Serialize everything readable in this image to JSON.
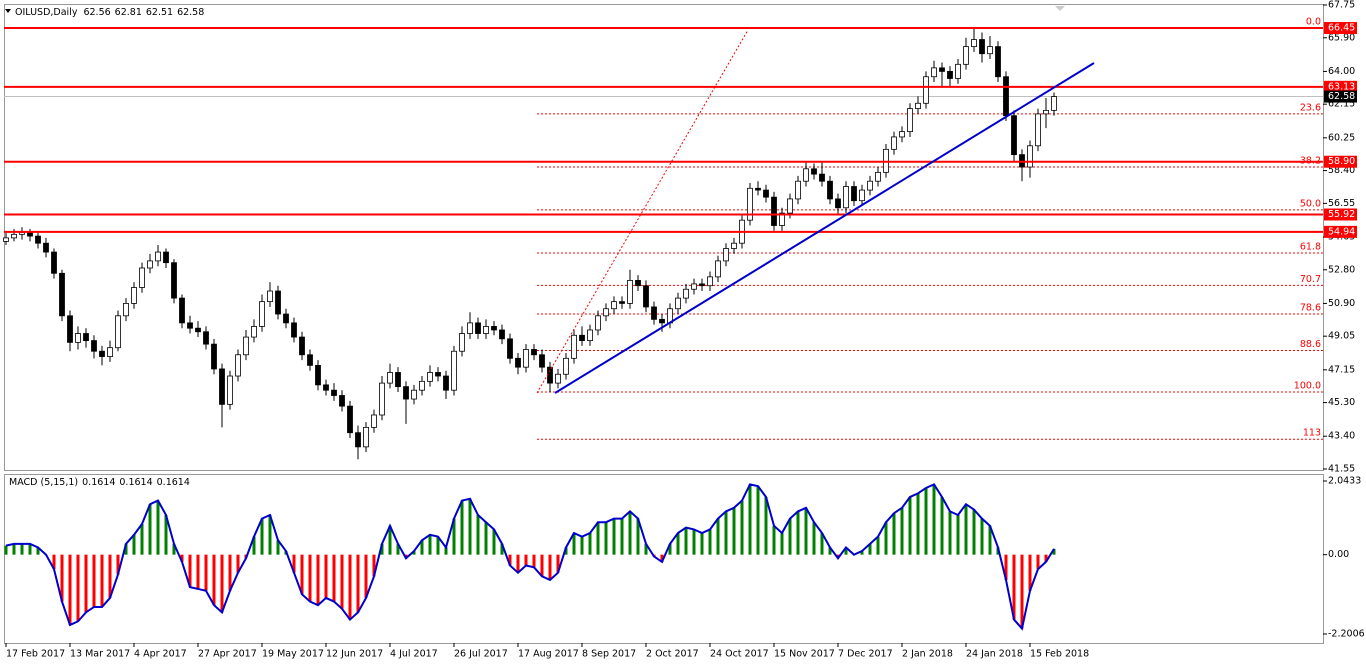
{
  "chart_data": [
    {
      "type": "candlestick",
      "title": "OILUSD,Daily",
      "header_values": [
        62.56,
        62.81,
        62.51,
        62.58
      ],
      "xlim": [
        -0.25,
        164.625
      ],
      "ylim": [
        41.55,
        67.75
      ],
      "yticks": [
        67.75,
        {
          "value": 65.9,
          "label": "65.90"
        },
        {
          "value": 64,
          "label": "64.00"
        },
        62.15,
        60.25,
        {
          "value": 58.4,
          "label": "58.40"
        },
        56.55,
        54.65,
        {
          "value": 52.8,
          "label": "52.80"
        },
        {
          "value": 50.9,
          "label": "50.90"
        },
        49.05,
        47.15,
        {
          "value": 45.3,
          "label": "45.30"
        },
        {
          "value": 43.4,
          "label": "43.40"
        },
        41.55
      ],
      "xticks": [
        {
          "value": 0,
          "label": "17 Feb 2017"
        },
        {
          "value": 8,
          "label": "13 Mar 2017"
        },
        {
          "value": 16,
          "label": "4 Apr 2017"
        },
        {
          "value": 24,
          "label": "27 Apr 2017"
        },
        {
          "value": 32,
          "label": "19 May 2017"
        },
        {
          "value": 40,
          "label": "12 Jun 2017"
        },
        {
          "value": 48,
          "label": "4 Jul 2017"
        },
        {
          "value": 56,
          "label": "26 Jul 2017"
        },
        {
          "value": 64,
          "label": "17 Aug 2017"
        },
        {
          "value": 72,
          "label": "8 Sep 2017"
        },
        {
          "value": 80,
          "label": "2 Oct 2017"
        },
        {
          "value": 88,
          "label": "24 Oct 2017"
        },
        {
          "value": 96,
          "label": "15 Nov 2017"
        },
        {
          "value": 104,
          "label": "7 Dec 2017"
        },
        {
          "value": 112,
          "label": "2 Jan 2018"
        },
        {
          "value": 120,
          "label": "24 Jan 2018"
        },
        {
          "value": 128,
          "label": "15 Feb 2018"
        }
      ],
      "levels": [
        66.45,
        63.13,
        {
          "value": 58.9,
          "label": "58.90"
        },
        55.92,
        54.94
      ],
      "level_color": "#ff0000",
      "current_price": 62.58,
      "fib_levels": [
        {
          "label": "0.0",
          "price": 66.45
        },
        {
          "label": "23.6",
          "price": 61.6
        },
        {
          "label": "38.2",
          "price": 58.6
        },
        {
          "label": "50.0",
          "price": 56.18
        },
        {
          "label": "61.8",
          "price": 53.75
        },
        {
          "label": "70.7",
          "price": 51.92
        },
        {
          "label": "78.6",
          "price": 50.3
        },
        {
          "label": "88.6",
          "price": 48.24
        },
        {
          "label": "100.0",
          "price": 45.9
        },
        {
          "label": "113",
          "price": 43.23
        }
      ],
      "fib_color": "#ff0000",
      "up_color": "#ffffff",
      "down_color": "#000000",
      "ohlc": [
        [
          54.4,
          54.9,
          54.2,
          54.6
        ],
        [
          54.6,
          55.1,
          54.4,
          54.8
        ],
        [
          54.8,
          55.2,
          54.5,
          54.9
        ],
        [
          54.9,
          55.1,
          54.4,
          54.7
        ],
        [
          54.7,
          54.9,
          54.0,
          54.3
        ],
        [
          54.3,
          54.6,
          53.5,
          53.8
        ],
        [
          53.8,
          54.0,
          52.3,
          52.6
        ],
        [
          52.6,
          52.8,
          49.9,
          50.2
        ],
        [
          50.2,
          50.5,
          48.2,
          48.7
        ],
        [
          48.7,
          49.6,
          48.3,
          49.2
        ],
        [
          49.2,
          49.5,
          48.4,
          48.8
        ],
        [
          48.8,
          49.1,
          47.8,
          48.2
        ],
        [
          48.2,
          48.5,
          47.4,
          47.9
        ],
        [
          47.9,
          48.8,
          47.6,
          48.4
        ],
        [
          48.4,
          50.5,
          48.2,
          50.2
        ],
        [
          50.2,
          51.2,
          49.9,
          50.9
        ],
        [
          50.9,
          52.1,
          50.6,
          51.8
        ],
        [
          51.8,
          53.2,
          51.5,
          52.9
        ],
        [
          52.9,
          53.7,
          52.6,
          53.3
        ],
        [
          53.3,
          54.2,
          53.0,
          53.8
        ],
        [
          53.8,
          54.0,
          52.9,
          53.2
        ],
        [
          53.2,
          53.4,
          50.9,
          51.2
        ],
        [
          51.2,
          51.4,
          49.5,
          49.8
        ],
        [
          49.8,
          50.2,
          49.2,
          49.5
        ],
        [
          49.5,
          49.9,
          49.0,
          49.3
        ],
        [
          49.3,
          49.6,
          48.3,
          48.6
        ],
        [
          48.6,
          48.9,
          46.9,
          47.2
        ],
        [
          47.2,
          47.5,
          43.9,
          45.2
        ],
        [
          45.2,
          47.1,
          44.9,
          46.8
        ],
        [
          46.8,
          48.3,
          46.5,
          48.0
        ],
        [
          48.0,
          49.4,
          47.7,
          49.0
        ],
        [
          49.0,
          50.0,
          48.7,
          49.6
        ],
        [
          49.6,
          51.4,
          49.3,
          51.0
        ],
        [
          51.0,
          52.1,
          50.7,
          51.6
        ],
        [
          51.6,
          51.9,
          50.0,
          50.3
        ],
        [
          50.3,
          50.6,
          49.5,
          49.8
        ],
        [
          49.8,
          50.1,
          48.7,
          49.0
        ],
        [
          49.0,
          49.3,
          47.7,
          48.0
        ],
        [
          48.0,
          48.3,
          47.1,
          47.4
        ],
        [
          47.4,
          47.7,
          46.0,
          46.3
        ],
        [
          46.3,
          46.6,
          45.7,
          46.0
        ],
        [
          46.0,
          46.4,
          45.4,
          45.7
        ],
        [
          45.7,
          46.0,
          44.8,
          45.1
        ],
        [
          45.1,
          45.4,
          43.3,
          43.6
        ],
        [
          43.6,
          44.0,
          42.1,
          42.8
        ],
        [
          42.8,
          44.2,
          42.5,
          43.9
        ],
        [
          43.9,
          44.9,
          43.6,
          44.6
        ],
        [
          44.6,
          46.8,
          44.3,
          46.4
        ],
        [
          46.4,
          47.5,
          46.1,
          47.0
        ],
        [
          47.0,
          47.3,
          45.9,
          46.2
        ],
        [
          46.2,
          46.5,
          44.1,
          45.5
        ],
        [
          45.5,
          46.3,
          45.2,
          46.0
        ],
        [
          46.0,
          46.8,
          45.7,
          46.5
        ],
        [
          46.5,
          47.4,
          46.2,
          47.0
        ],
        [
          47.0,
          47.3,
          46.5,
          46.8
        ],
        [
          46.8,
          47.1,
          45.5,
          46.0
        ],
        [
          46.0,
          48.5,
          45.7,
          48.2
        ],
        [
          48.2,
          49.6,
          47.9,
          49.2
        ],
        [
          49.2,
          50.4,
          48.9,
          49.8
        ],
        [
          49.8,
          50.1,
          48.9,
          49.2
        ],
        [
          49.2,
          50.0,
          48.9,
          49.6
        ],
        [
          49.6,
          49.9,
          49.1,
          49.4
        ],
        [
          49.4,
          49.7,
          48.6,
          48.9
        ],
        [
          48.9,
          49.2,
          47.5,
          47.8
        ],
        [
          47.8,
          48.1,
          46.9,
          47.3
        ],
        [
          47.3,
          48.6,
          47.0,
          48.3
        ],
        [
          48.3,
          48.6,
          47.7,
          48.0
        ],
        [
          48.0,
          48.3,
          47.0,
          47.3
        ],
        [
          47.3,
          47.6,
          45.9,
          46.4
        ],
        [
          46.4,
          47.2,
          46.1,
          46.9
        ],
        [
          46.9,
          48.1,
          46.6,
          47.8
        ],
        [
          47.8,
          49.4,
          47.5,
          49.1
        ],
        [
          49.1,
          49.6,
          48.5,
          48.8
        ],
        [
          48.8,
          49.7,
          48.5,
          49.4
        ],
        [
          49.4,
          50.5,
          49.1,
          50.2
        ],
        [
          50.2,
          50.9,
          49.9,
          50.6
        ],
        [
          50.6,
          51.3,
          50.3,
          51.0
        ],
        [
          51.0,
          51.3,
          50.6,
          50.9
        ],
        [
          50.9,
          52.8,
          50.6,
          52.2
        ],
        [
          52.2,
          52.5,
          51.6,
          51.9
        ],
        [
          51.9,
          52.2,
          50.4,
          50.7
        ],
        [
          50.7,
          51.0,
          49.7,
          50.0
        ],
        [
          50.0,
          50.3,
          49.3,
          49.8
        ],
        [
          49.8,
          50.9,
          49.5,
          50.6
        ],
        [
          50.6,
          51.5,
          50.3,
          51.2
        ],
        [
          51.2,
          52.0,
          50.9,
          51.7
        ],
        [
          51.7,
          52.3,
          51.4,
          52.0
        ],
        [
          52.0,
          52.3,
          51.6,
          51.9
        ],
        [
          51.9,
          52.7,
          51.6,
          52.4
        ],
        [
          52.4,
          53.6,
          52.1,
          53.3
        ],
        [
          53.3,
          54.3,
          53.0,
          54.0
        ],
        [
          54.0,
          54.6,
          53.7,
          54.3
        ],
        [
          54.3,
          55.9,
          54.0,
          55.6
        ],
        [
          55.6,
          57.7,
          55.3,
          57.4
        ],
        [
          57.4,
          57.8,
          57.0,
          57.3
        ],
        [
          57.3,
          57.6,
          56.6,
          56.9
        ],
        [
          56.9,
          57.2,
          55.0,
          55.3
        ],
        [
          55.3,
          56.3,
          55.0,
          56.0
        ],
        [
          56.0,
          57.1,
          55.7,
          56.8
        ],
        [
          56.8,
          58.1,
          56.5,
          57.8
        ],
        [
          57.8,
          58.9,
          57.5,
          58.5
        ],
        [
          58.5,
          58.8,
          57.9,
          58.2
        ],
        [
          58.2,
          58.9,
          57.5,
          57.8
        ],
        [
          57.8,
          58.1,
          56.5,
          56.8
        ],
        [
          56.8,
          57.1,
          55.9,
          56.3
        ],
        [
          56.3,
          57.8,
          56.0,
          57.5
        ],
        [
          57.5,
          57.8,
          56.4,
          56.7
        ],
        [
          56.7,
          57.6,
          56.4,
          57.3
        ],
        [
          57.3,
          58.1,
          57.0,
          57.8
        ],
        [
          57.8,
          58.6,
          57.5,
          58.3
        ],
        [
          58.3,
          59.9,
          58.0,
          59.6
        ],
        [
          59.6,
          60.6,
          59.3,
          60.3
        ],
        [
          60.3,
          60.9,
          60.0,
          60.6
        ],
        [
          60.6,
          62.2,
          60.3,
          61.9
        ],
        [
          61.9,
          62.6,
          61.6,
          62.2
        ],
        [
          62.2,
          64.0,
          61.9,
          63.7
        ],
        [
          63.7,
          64.6,
          63.4,
          64.2
        ],
        [
          64.2,
          64.5,
          63.1,
          64.0
        ],
        [
          64.0,
          64.3,
          63.1,
          63.6
        ],
        [
          63.6,
          64.7,
          63.3,
          64.4
        ],
        [
          64.4,
          65.9,
          64.1,
          65.4
        ],
        [
          65.4,
          66.4,
          65.1,
          65.8
        ],
        [
          65.8,
          66.2,
          64.5,
          65.0
        ],
        [
          65.0,
          66.0,
          64.7,
          65.4
        ],
        [
          65.4,
          65.7,
          63.4,
          63.7
        ],
        [
          63.7,
          64.0,
          61.2,
          61.5
        ],
        [
          61.5,
          61.8,
          58.9,
          59.3
        ],
        [
          59.3,
          59.6,
          57.8,
          58.6
        ],
        [
          58.6,
          60.1,
          58.0,
          59.8
        ],
        [
          59.8,
          61.9,
          59.5,
          61.6
        ],
        [
          61.6,
          62.5,
          60.8,
          61.8
        ],
        [
          61.8,
          62.81,
          61.5,
          62.58
        ]
      ]
    },
    {
      "type": "macd",
      "title": "MACD (5,15,1)",
      "header_values": [
        0.1614,
        0.1614,
        0.1614
      ],
      "ylim": [
        -2.2006,
        2.0433
      ],
      "yticks": [
        2.0433,
        {
          "value": 0,
          "label": "0.00"
        },
        -2.2006
      ],
      "up_color": "#008000",
      "down_color": "#ff0000",
      "line_color": "#0000cd",
      "values": [
        0.25,
        0.3,
        0.3,
        0.3,
        0.2,
        0,
        -0.4,
        -1.3,
        -1.95,
        -1.85,
        -1.6,
        -1.45,
        -1.45,
        -1.2,
        -0.55,
        0.3,
        0.55,
        0.85,
        1.4,
        1.5,
        1.1,
        0.3,
        -0.2,
        -0.9,
        -0.95,
        -1.0,
        -1.4,
        -1.6,
        -1.0,
        -0.5,
        -0.1,
        0.5,
        1.0,
        1.1,
        0.4,
        0.1,
        -0.5,
        -1.1,
        -1.3,
        -1.4,
        -1.2,
        -1.3,
        -1.5,
        -1.8,
        -1.6,
        -1.2,
        -0.6,
        0.3,
        0.8,
        0.3,
        -0.1,
        0.1,
        0.4,
        0.55,
        0.5,
        0.2,
        1.0,
        1.5,
        1.55,
        1.1,
        0.9,
        0.7,
        0.3,
        -0.3,
        -0.5,
        -0.3,
        -0.35,
        -0.6,
        -0.7,
        -0.5,
        0.2,
        0.6,
        0.5,
        0.6,
        0.9,
        0.9,
        1.0,
        1.0,
        1.2,
        1.0,
        0.3,
        -0.05,
        -0.2,
        0.3,
        0.6,
        0.75,
        0.7,
        0.6,
        0.7,
        1.0,
        1.2,
        1.3,
        1.5,
        1.95,
        1.9,
        1.6,
        0.8,
        0.6,
        1.0,
        1.2,
        1.3,
        0.9,
        0.6,
        0.2,
        -0.1,
        0.2,
        0,
        0.1,
        0.3,
        0.5,
        0.9,
        1.15,
        1.3,
        1.6,
        1.7,
        1.85,
        1.95,
        1.6,
        1.2,
        1.1,
        1.4,
        1.25,
        1.0,
        0.8,
        0.2,
        -0.7,
        -1.8,
        -2.05,
        -1.0,
        -0.4,
        -0.2,
        0.1614
      ]
    }
  ]
}
